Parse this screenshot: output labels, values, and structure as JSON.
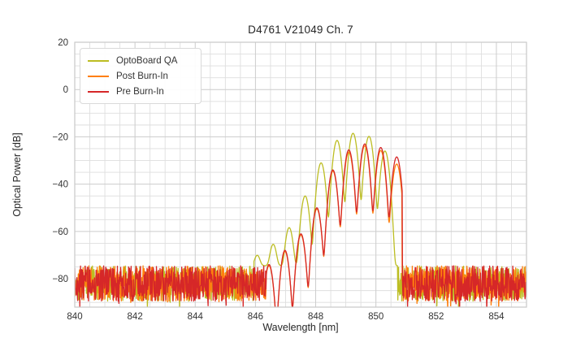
{
  "chart_data": {
    "type": "line",
    "title": "D4761 V21049 Ch. 7",
    "xlabel": "Wavelength [nm]",
    "ylabel": "Optical Power [dB]",
    "xlim": [
      840,
      855
    ],
    "ylim": [
      -92,
      20
    ],
    "xticks": [
      840,
      842,
      844,
      846,
      848,
      850,
      852,
      854
    ],
    "yticks": [
      20,
      0,
      -20,
      -40,
      -60,
      -80
    ],
    "x_minor_step_nm": 0.5,
    "y_minor_step_db": 5,
    "grid": true,
    "legend_position": "upper left",
    "description": "Optical spectrum of a VCSEL channel: noise floor near -82 dB with multimode signal between ~846.4 and ~850.9 nm, mode spacing ~0.53 nm",
    "axis_colors": {
      "grid_minor": "#dedede",
      "grid_major": "#cccccc",
      "frame": "#c9c9c9",
      "title_text": "#262626",
      "tick_text": "#333333"
    },
    "series": [
      {
        "name": "OptoBoard QA",
        "color": "#bcbd22",
        "signal_range_nm": [
          845.95,
          850.72
        ],
        "mode_centers_nm": [
          846.06,
          846.59,
          847.12,
          847.65,
          848.18,
          848.71,
          849.24,
          849.77,
          850.3
        ],
        "mode_peaks_db": [
          -72,
          -66,
          -58.5,
          -45,
          -31,
          -21.5,
          -18.5,
          -19.8,
          -26
        ],
        "mode_sigma_nm": 0.1,
        "pedestal_db": -74.5,
        "noise_floor_db": {
          "mean": -82,
          "spread": 7.5
        },
        "noise_seed": 101
      },
      {
        "name": "Post Burn-In",
        "color": "#ff7f0e",
        "signal_range_nm": [
          846.36,
          850.86
        ],
        "mode_centers_nm": [
          846.45,
          846.98,
          847.51,
          848.04,
          848.57,
          849.1,
          849.63,
          850.16,
          850.69
        ],
        "mode_peaks_db": [
          -74.5,
          -68.5,
          -61.5,
          -50.5,
          -34.5,
          -26.5,
          -23.8,
          -25.8,
          -31.5
        ],
        "mode_sigma_nm": 0.1,
        "pedestal_db": -120,
        "noise_floor_db": {
          "mean": -82,
          "spread": 7.5
        },
        "noise_seed": 202
      },
      {
        "name": "Pre Burn-In",
        "color": "#d62728",
        "signal_range_nm": [
          846.36,
          850.88
        ],
        "mode_centers_nm": [
          846.45,
          846.98,
          847.51,
          848.04,
          848.57,
          849.1,
          849.63,
          850.16,
          850.69
        ],
        "mode_peaks_db": [
          -74,
          -68,
          -61,
          -50,
          -34,
          -25.5,
          -23,
          -24.5,
          -28.5
        ],
        "mode_sigma_nm": 0.1,
        "pedestal_db": -120,
        "noise_floor_db": {
          "mean": -82,
          "spread": 7.5
        },
        "noise_seed": 303
      }
    ]
  }
}
